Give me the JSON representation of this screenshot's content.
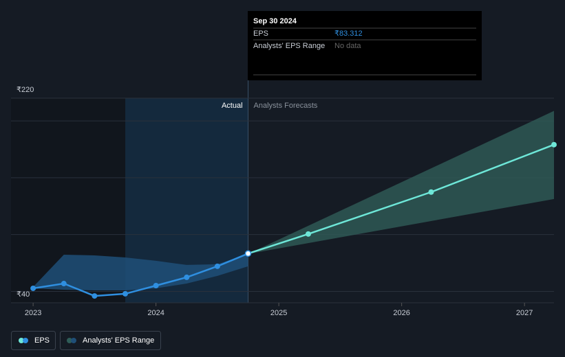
{
  "tooltip": {
    "date": "Sep 30 2024",
    "rows": [
      {
        "label": "EPS",
        "value": 83.312,
        "value_label": "₹83.312"
      },
      {
        "label": "Analysts' EPS Range",
        "value_label": "No data"
      }
    ]
  },
  "chart_data": {
    "type": "line",
    "annotations": [
      "Actual",
      "Analysts Forecasts"
    ],
    "xlim": [
      2022.82,
      2027.24
    ],
    "xticks": [
      2023,
      2024,
      2025,
      2026,
      2027
    ],
    "ylim": [
      40,
      220
    ],
    "yticks": [
      {
        "value": 40,
        "label": "₹40"
      },
      {
        "value": 220,
        "label": "₹220"
      }
    ],
    "ygrid": [
      50,
      100,
      150,
      200
    ],
    "series": [
      {
        "name": "EPS",
        "color": "#2f8fe0",
        "x": [
          2023,
          2023.25,
          2023.5,
          2023.75,
          2024,
          2024.25,
          2024.5,
          2024.75
        ],
        "values": [
          52.7,
          56.9,
          46.0,
          47.9,
          55.1,
          62.4,
          72.1,
          83.312
        ],
        "forecast": {
          "color": "#6ee7d8",
          "x": [
            2024.75,
            2025.24,
            2026.24,
            2027.24
          ],
          "values": [
            83.312,
            100.5,
            137.4,
            179.1
          ]
        }
      },
      {
        "name": "Analysts' EPS Range",
        "color": "#1f4f78",
        "x": [
          2023,
          2023.25,
          2023.5,
          2023.75,
          2024,
          2024.25,
          2024.5,
          2024.75
        ],
        "low": [
          52.7,
          51.5,
          50.9,
          50.9,
          52.7,
          56.9,
          63.6,
          72.1
        ],
        "high": [
          53.9,
          82.3,
          81.7,
          79.9,
          76.9,
          73.3,
          73.9,
          83.0
        ],
        "forecast": {
          "color": "#2f5d58",
          "x": [
            2024.75,
            2027.24
          ],
          "low": [
            83.0,
            131.3
          ],
          "high": [
            83.0,
            208.8
          ]
        }
      }
    ]
  }
}
